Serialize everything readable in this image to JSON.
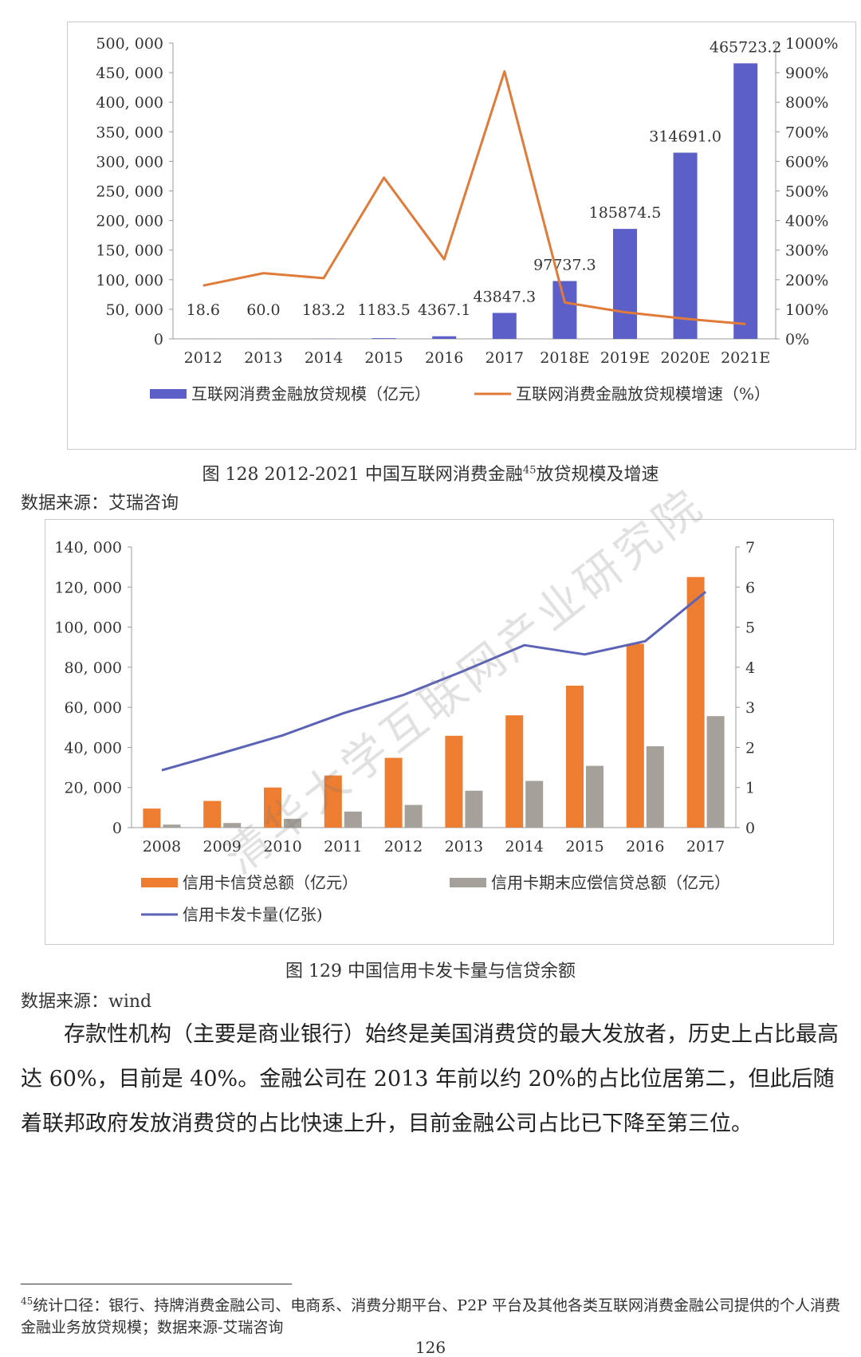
{
  "figure1": {
    "caption_prefix": "图",
    "caption_number": "128 2012-2021 中国互联网消费金融",
    "caption_footnote_ref": "45",
    "caption_suffix": "放贷规模及增速",
    "source": "数据来源：艾瑞咨询"
  },
  "figure2": {
    "caption": "图  129  中国信用卡发卡量与信贷余额",
    "source": "数据来源：wind"
  },
  "body_paragraph": "存款性机构（主要是商业银行）始终是美国消费贷的最大发放者，历史上占比最高达 60%，目前是 40%。金融公司在 2013 年前以约 20%的占比位居第二，但此后随着联邦政府发放消费贷的占比快速上升，目前金融公司占比已下降至第三位。",
  "footnote": {
    "ref": "45",
    "text": "统计口径：银行、持牌消费金融公司、电商系、消费分期平台、P2P 平台及其他各类互联网消费金融公司提供的个人消费金融业务放贷规模；数据来源-艾瑞咨询"
  },
  "page_number": "126",
  "watermark": "清华大学互联网产业研究院",
  "colors": {
    "bar_blue": "#5b5fc7",
    "line_orange": "#e07b39",
    "bar_orange": "#ed7d31",
    "bar_gray": "#a5a09a",
    "line_blue": "#5b63b7"
  },
  "chart_data": [
    {
      "type": "bar",
      "categories": [
        "2012",
        "2013",
        "2014",
        "2015",
        "2016",
        "2017",
        "2018E",
        "2019E",
        "2020E",
        "2021E"
      ],
      "series": [
        {
          "name": "互联网消费金融放贷规模（亿元）",
          "axis": "left",
          "values": [
            18.6,
            60.0,
            183.2,
            1183.5,
            4367.1,
            43847.3,
            97737.3,
            185874.5,
            314691.0,
            465723.2
          ],
          "labels": [
            "18.6",
            "60.0",
            "183.2",
            "1183.5",
            "4367.1",
            "43847.3",
            "97737.3",
            "185874.5",
            "314691.0",
            "465723.2"
          ]
        },
        {
          "name": "互联网消费金融放贷规模增速（%）",
          "axis": "right",
          "render": "line",
          "values": [
            180,
            222,
            205,
            545,
            269,
            904,
            123,
            90,
            68,
            50
          ]
        }
      ],
      "left_axis": {
        "ylim": [
          0,
          500000
        ],
        "ticks": [
          "0",
          "50, 000",
          "100, 000",
          "150, 000",
          "200, 000",
          "250, 000",
          "300, 000",
          "350, 000",
          "400, 000",
          "450, 000",
          "500, 000"
        ]
      },
      "right_axis": {
        "ylim": [
          0,
          1000
        ],
        "ticks": [
          "0%",
          "100%",
          "200%",
          "300%",
          "400%",
          "500%",
          "600%",
          "700%",
          "800%",
          "900%",
          "1000%"
        ]
      },
      "legend_position": "bottom",
      "grid": false
    },
    {
      "type": "bar",
      "categories": [
        "2008",
        "2009",
        "2010",
        "2011",
        "2012",
        "2013",
        "2014",
        "2015",
        "2016",
        "2017"
      ],
      "series": [
        {
          "name": "信用卡信贷总额（亿元）",
          "axis": "left",
          "values": [
            9500,
            13300,
            20000,
            26000,
            34800,
            45800,
            56000,
            70800,
            91700,
            125000
          ]
        },
        {
          "name": "信用卡期末应偿信贷总额（亿元）",
          "axis": "left",
          "values": [
            1500,
            2300,
            4400,
            8000,
            11300,
            18400,
            23300,
            30800,
            40600,
            55600
          ]
        },
        {
          "name": "信用卡发卡量(亿张)",
          "axis": "right",
          "render": "line",
          "values": [
            1.43,
            1.86,
            2.3,
            2.85,
            3.31,
            3.91,
            4.55,
            4.32,
            4.65,
            5.88
          ]
        }
      ],
      "left_axis": {
        "ylim": [
          0,
          140000
        ],
        "ticks": [
          "0",
          "20, 000",
          "40, 000",
          "60, 000",
          "80, 000",
          "100, 000",
          "120, 000",
          "140, 000"
        ]
      },
      "right_axis": {
        "ylim": [
          0,
          7
        ],
        "ticks": [
          "0",
          "1",
          "2",
          "3",
          "4",
          "5",
          "6",
          "7"
        ]
      },
      "legend_position": "bottom",
      "grid": false
    }
  ]
}
